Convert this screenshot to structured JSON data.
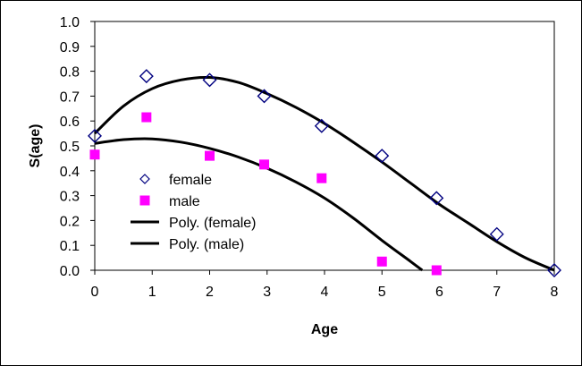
{
  "chart_data": {
    "type": "scatter",
    "xlabel": "Age",
    "ylabel": "S(age)",
    "xlim": [
      0,
      8
    ],
    "ylim": [
      0,
      1
    ],
    "x_ticks": [
      "0",
      "1",
      "2",
      "3",
      "4",
      "5",
      "6",
      "7",
      "8"
    ],
    "y_ticks": [
      "0.0",
      "0.1",
      "0.2",
      "0.3",
      "0.4",
      "0.5",
      "0.6",
      "0.7",
      "0.8",
      "0.9",
      "1.0"
    ],
    "grid": false,
    "legend_position": "left",
    "series": [
      {
        "name": "female",
        "kind": "scatter",
        "marker": "diamond-outline",
        "color": "#000080",
        "x": [
          0,
          0.9,
          2,
          2.95,
          3.95,
          5,
          5.95,
          7,
          8
        ],
        "y": [
          0.54,
          0.78,
          0.765,
          0.7,
          0.58,
          0.46,
          0.29,
          0.145,
          0.0
        ]
      },
      {
        "name": "male",
        "kind": "scatter",
        "marker": "square-filled",
        "color": "#ff00ff",
        "x": [
          0,
          0.9,
          2,
          2.95,
          3.95,
          5,
          5.95
        ],
        "y": [
          0.465,
          0.615,
          0.46,
          0.425,
          0.37,
          0.035,
          0.0
        ]
      },
      {
        "name": "Poly. (female)",
        "kind": "trendline",
        "color": "#000000",
        "x": [
          0,
          0.5,
          1,
          1.5,
          2,
          2.5,
          3,
          3.5,
          4,
          4.5,
          5,
          5.5,
          6,
          6.5,
          7,
          7.5,
          8
        ],
        "y": [
          0.55,
          0.66,
          0.73,
          0.765,
          0.775,
          0.755,
          0.71,
          0.655,
          0.59,
          0.515,
          0.435,
          0.35,
          0.265,
          0.19,
          0.115,
          0.05,
          0.0
        ]
      },
      {
        "name": "Poly. (male)",
        "kind": "trendline",
        "color": "#000000",
        "x": [
          0,
          0.5,
          1,
          1.5,
          2,
          2.5,
          3,
          3.5,
          4,
          4.5,
          5,
          5.5,
          5.7
        ],
        "y": [
          0.51,
          0.525,
          0.528,
          0.515,
          0.49,
          0.455,
          0.41,
          0.355,
          0.29,
          0.21,
          0.12,
          0.035,
          0.0
        ]
      }
    ]
  }
}
